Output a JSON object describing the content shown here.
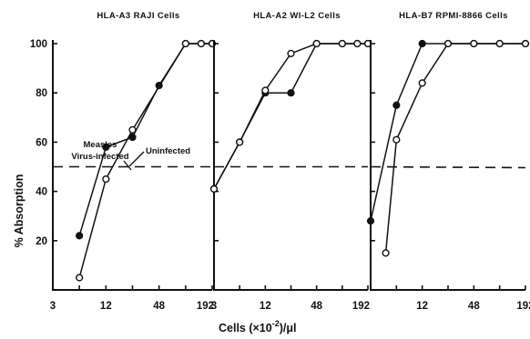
{
  "chart_data": {
    "type": "line",
    "ylabel": "% Absorption",
    "xlabel_main": "Cells (×10",
    "xlabel_exp": "-2",
    "xlabel_tail": ")/μl",
    "x_scale": "log2",
    "ylim": [
      0,
      100
    ],
    "y_ticks": [
      20,
      40,
      60,
      80,
      100
    ],
    "reference_line_y": 50,
    "panels": [
      {
        "title": "HLA-A3 RAJI Cells",
        "xlim": [
          3,
          192
        ],
        "x_ticks": [
          3,
          12,
          48,
          192
        ],
        "x_tick_labels": [
          "3",
          "12",
          "48",
          "192"
        ],
        "series": [
          {
            "marker": "filled",
            "x": [
              6,
              12,
              24,
              48,
              96,
              144,
              192
            ],
            "y": [
              22,
              58,
              62,
              83,
              100,
              100,
              100
            ]
          },
          {
            "marker": "open",
            "x": [
              6,
              12,
              24,
              96,
              144,
              192
            ],
            "y": [
              5,
              45,
              65,
              100,
              100,
              100
            ]
          }
        ],
        "annotations": [
          {
            "text": "Measles",
            "target": "filled"
          },
          {
            "text": "Virus-infected",
            "target": "filled"
          },
          {
            "text": "Uninfected",
            "target": "open"
          }
        ]
      },
      {
        "title": "HLA-A2 WI-L2 Cells",
        "xlim": [
          3,
          192
        ],
        "x_ticks": [
          3,
          12,
          48,
          192
        ],
        "x_tick_labels": [
          "3",
          "12",
          "48",
          "192"
        ],
        "series": [
          {
            "marker": "filled",
            "x": [
              3,
              6,
              12,
              24,
              48,
              96,
              144,
              192
            ],
            "y": [
              41,
              60,
              80,
              80,
              100,
              100,
              100,
              100
            ]
          },
          {
            "marker": "open",
            "x": [
              3,
              6,
              12,
              24,
              48,
              96,
              144,
              192
            ],
            "y": [
              41,
              60,
              81,
              96,
              100,
              100,
              100,
              100
            ]
          }
        ]
      },
      {
        "title": "HLA-B7 RPMI-8866 Cells",
        "xlim": [
          3,
          192
        ],
        "x_ticks": [
          12,
          48,
          192
        ],
        "x_tick_labels": [
          "12",
          "48",
          "192"
        ],
        "series": [
          {
            "marker": "filled",
            "x": [
              3,
              6,
              12,
              24,
              48,
              96,
              192
            ],
            "y": [
              28,
              75,
              100,
              100,
              100,
              100,
              100
            ]
          },
          {
            "marker": "open",
            "x": [
              4.5,
              6,
              12,
              24,
              48,
              96,
              192
            ],
            "y": [
              15,
              61,
              84,
              100,
              100,
              100,
              100
            ]
          }
        ]
      }
    ]
  }
}
